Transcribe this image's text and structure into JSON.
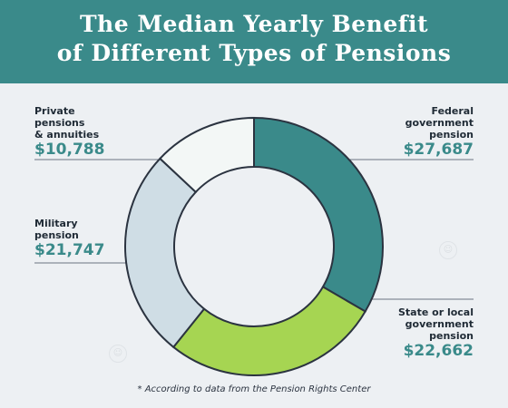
{
  "header": {
    "title_line1": "The Median Yearly Benefit",
    "title_line2": "of Different Types of Pensions"
  },
  "chart_data": {
    "type": "pie",
    "style": "donut",
    "title": "The Median Yearly Benefit of Different Types of Pensions",
    "slices": [
      {
        "label_lines": [
          "Federal",
          "government",
          "pension"
        ],
        "value": 27687,
        "value_label": "$27,687",
        "color": "#3a8a8a"
      },
      {
        "label_lines": [
          "State or local",
          "government",
          "pension"
        ],
        "value": 22662,
        "value_label": "$22,662",
        "color": "#a6d552"
      },
      {
        "label_lines": [
          "Military",
          "pension"
        ],
        "value": 21747,
        "value_label": "$21,747",
        "color": "#cfdde5"
      },
      {
        "label_lines": [
          "Private",
          "pensions",
          "& annuities"
        ],
        "value": 10788,
        "value_label": "$10,788",
        "color": "#f3f7f6"
      }
    ],
    "footnote": "* According to data from the Pension Rights Center"
  },
  "colors": {
    "header_bg": "#3a8a8a",
    "accent_text": "#3a8a8a",
    "background": "#edf0f3",
    "slice_outline": "#2b3340"
  }
}
